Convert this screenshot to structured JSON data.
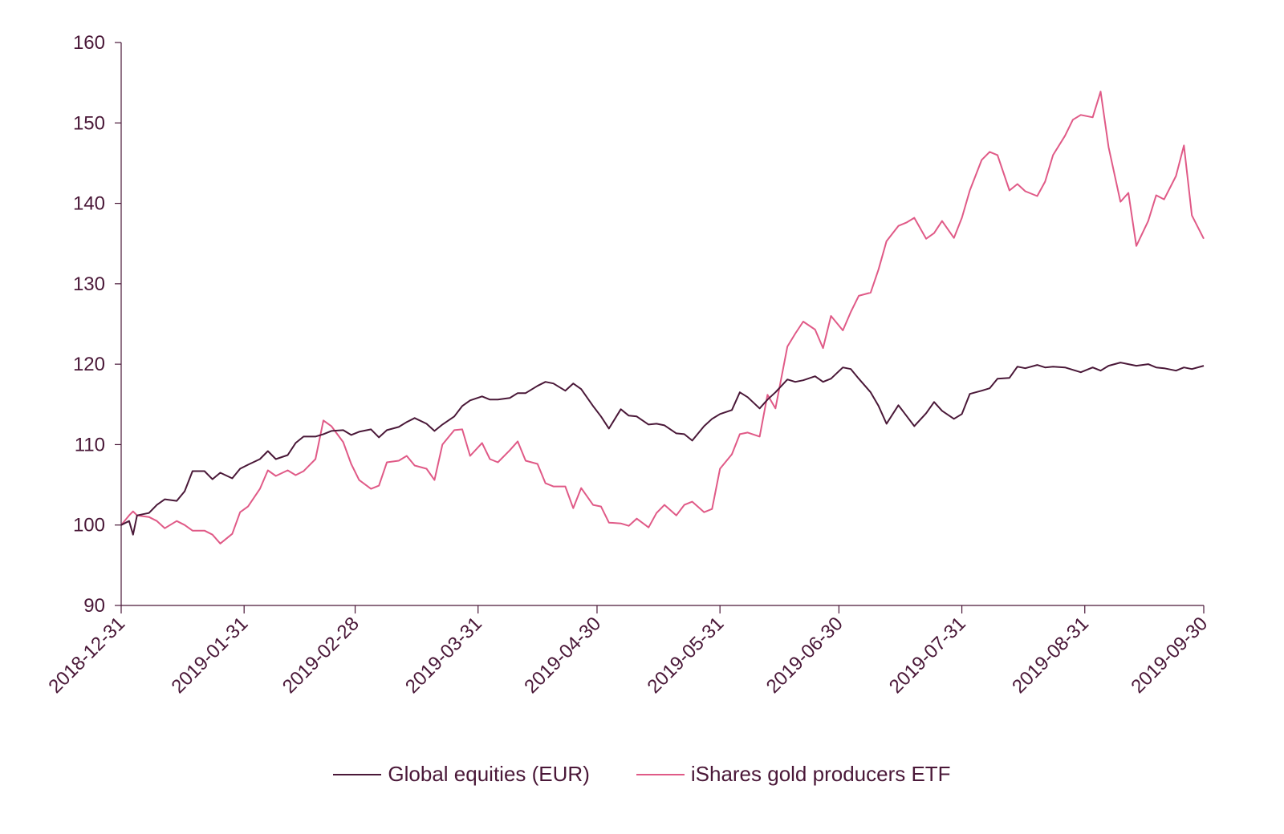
{
  "chart_data": {
    "type": "line",
    "title": "",
    "xlabel": "",
    "ylabel": "",
    "x_ticks": [
      "2018-12-31",
      "2019-01-31",
      "2019-02-28",
      "2019-03-31",
      "2019-04-30",
      "2019-05-31",
      "2019-06-30",
      "2019-07-31",
      "2019-08-31",
      "2019-09-30"
    ],
    "y_ticks": [
      "90",
      "100",
      "110",
      "120",
      "130",
      "140",
      "150",
      "160"
    ],
    "xlim": [
      "2018-12-31",
      "2019-09-30"
    ],
    "ylim": [
      90,
      160
    ],
    "grid": false,
    "legend_position": "bottom",
    "series": [
      {
        "name": "Global equities (EUR)",
        "color": "#4a1838",
        "points": [
          [
            "2018-12-31",
            100.0
          ],
          [
            "2019-01-02",
            100.5
          ],
          [
            "2019-01-03",
            98.8
          ],
          [
            "2019-01-04",
            101.2
          ],
          [
            "2019-01-07",
            101.5
          ],
          [
            "2019-01-09",
            102.5
          ],
          [
            "2019-01-11",
            103.2
          ],
          [
            "2019-01-14",
            103.0
          ],
          [
            "2019-01-16",
            104.2
          ],
          [
            "2019-01-18",
            106.7
          ],
          [
            "2019-01-21",
            106.7
          ],
          [
            "2019-01-23",
            105.7
          ],
          [
            "2019-01-25",
            106.5
          ],
          [
            "2019-01-28",
            105.8
          ],
          [
            "2019-01-30",
            107.0
          ],
          [
            "2019-02-01",
            107.5
          ],
          [
            "2019-02-04",
            108.2
          ],
          [
            "2019-02-06",
            109.2
          ],
          [
            "2019-02-08",
            108.2
          ],
          [
            "2019-02-11",
            108.7
          ],
          [
            "2019-02-13",
            110.2
          ],
          [
            "2019-02-15",
            111.0
          ],
          [
            "2019-02-18",
            111.0
          ],
          [
            "2019-02-20",
            111.3
          ],
          [
            "2019-02-22",
            111.7
          ],
          [
            "2019-02-25",
            111.8
          ],
          [
            "2019-02-27",
            111.2
          ],
          [
            "2019-03-01",
            111.6
          ],
          [
            "2019-03-04",
            111.9
          ],
          [
            "2019-03-06",
            110.9
          ],
          [
            "2019-03-08",
            111.8
          ],
          [
            "2019-03-11",
            112.2
          ],
          [
            "2019-03-13",
            112.8
          ],
          [
            "2019-03-15",
            113.3
          ],
          [
            "2019-03-18",
            112.6
          ],
          [
            "2019-03-20",
            111.7
          ],
          [
            "2019-03-22",
            112.5
          ],
          [
            "2019-03-25",
            113.5
          ],
          [
            "2019-03-27",
            114.8
          ],
          [
            "2019-03-29",
            115.5
          ],
          [
            "2019-04-01",
            116.0
          ],
          [
            "2019-04-03",
            115.6
          ],
          [
            "2019-04-05",
            115.6
          ],
          [
            "2019-04-08",
            115.8
          ],
          [
            "2019-04-10",
            116.4
          ],
          [
            "2019-04-12",
            116.4
          ],
          [
            "2019-04-15",
            117.3
          ],
          [
            "2019-04-17",
            117.8
          ],
          [
            "2019-04-19",
            117.6
          ],
          [
            "2019-04-22",
            116.7
          ],
          [
            "2019-04-24",
            117.6
          ],
          [
            "2019-04-26",
            116.9
          ],
          [
            "2019-04-29",
            114.8
          ],
          [
            "2019-05-01",
            113.5
          ],
          [
            "2019-05-03",
            112.0
          ],
          [
            "2019-05-06",
            114.4
          ],
          [
            "2019-05-08",
            113.6
          ],
          [
            "2019-05-10",
            113.5
          ],
          [
            "2019-05-13",
            112.5
          ],
          [
            "2019-05-15",
            112.6
          ],
          [
            "2019-05-17",
            112.4
          ],
          [
            "2019-05-20",
            111.4
          ],
          [
            "2019-05-22",
            111.3
          ],
          [
            "2019-05-24",
            110.5
          ],
          [
            "2019-05-27",
            112.3
          ],
          [
            "2019-05-29",
            113.2
          ],
          [
            "2019-05-31",
            113.8
          ],
          [
            "2019-06-03",
            114.3
          ],
          [
            "2019-06-05",
            116.5
          ],
          [
            "2019-06-07",
            115.9
          ],
          [
            "2019-06-10",
            114.5
          ],
          [
            "2019-06-12",
            115.6
          ],
          [
            "2019-06-14",
            116.5
          ],
          [
            "2019-06-17",
            118.1
          ],
          [
            "2019-06-19",
            117.8
          ],
          [
            "2019-06-21",
            118.0
          ],
          [
            "2019-06-24",
            118.5
          ],
          [
            "2019-06-26",
            117.8
          ],
          [
            "2019-06-28",
            118.2
          ],
          [
            "2019-07-01",
            119.6
          ],
          [
            "2019-07-03",
            119.4
          ],
          [
            "2019-07-05",
            118.2
          ],
          [
            "2019-07-08",
            116.5
          ],
          [
            "2019-07-10",
            114.8
          ],
          [
            "2019-07-12",
            112.6
          ],
          [
            "2019-07-15",
            114.9
          ],
          [
            "2019-07-17",
            113.6
          ],
          [
            "2019-07-19",
            112.3
          ],
          [
            "2019-07-22",
            113.9
          ],
          [
            "2019-07-24",
            115.3
          ],
          [
            "2019-07-26",
            114.2
          ],
          [
            "2019-07-29",
            113.2
          ],
          [
            "2019-07-31",
            113.8
          ],
          [
            "2019-08-02",
            116.3
          ],
          [
            "2019-08-05",
            116.7
          ],
          [
            "2019-08-07",
            117.0
          ],
          [
            "2019-08-09",
            118.2
          ],
          [
            "2019-08-12",
            118.3
          ],
          [
            "2019-08-14",
            119.7
          ],
          [
            "2019-08-16",
            119.5
          ],
          [
            "2019-08-19",
            119.9
          ],
          [
            "2019-08-21",
            119.6
          ],
          [
            "2019-08-23",
            119.7
          ],
          [
            "2019-08-26",
            119.6
          ],
          [
            "2019-08-28",
            119.3
          ],
          [
            "2019-08-30",
            119.0
          ],
          [
            "2019-09-02",
            119.6
          ],
          [
            "2019-09-04",
            119.2
          ],
          [
            "2019-09-06",
            119.8
          ],
          [
            "2019-09-09",
            120.2
          ],
          [
            "2019-09-11",
            120.0
          ],
          [
            "2019-09-13",
            119.8
          ],
          [
            "2019-09-16",
            120.0
          ],
          [
            "2019-09-18",
            119.6
          ],
          [
            "2019-09-20",
            119.5
          ],
          [
            "2019-09-23",
            119.2
          ],
          [
            "2019-09-25",
            119.6
          ],
          [
            "2019-09-27",
            119.4
          ],
          [
            "2019-09-30",
            119.8
          ]
        ]
      },
      {
        "name": "iShares gold producers ETF",
        "color": "#e05a87",
        "points": [
          [
            "2018-12-31",
            100.0
          ],
          [
            "2019-01-02",
            101.2
          ],
          [
            "2019-01-03",
            101.7
          ],
          [
            "2019-01-04",
            101.2
          ],
          [
            "2019-01-07",
            101.0
          ],
          [
            "2019-01-09",
            100.5
          ],
          [
            "2019-01-11",
            99.6
          ],
          [
            "2019-01-14",
            100.5
          ],
          [
            "2019-01-16",
            100.0
          ],
          [
            "2019-01-18",
            99.3
          ],
          [
            "2019-01-21",
            99.3
          ],
          [
            "2019-01-23",
            98.8
          ],
          [
            "2019-01-25",
            97.7
          ],
          [
            "2019-01-28",
            98.9
          ],
          [
            "2019-01-30",
            101.6
          ],
          [
            "2019-02-01",
            102.3
          ],
          [
            "2019-02-04",
            104.5
          ],
          [
            "2019-02-06",
            106.8
          ],
          [
            "2019-02-08",
            106.1
          ],
          [
            "2019-02-11",
            106.8
          ],
          [
            "2019-02-13",
            106.2
          ],
          [
            "2019-02-15",
            106.7
          ],
          [
            "2019-02-18",
            108.2
          ],
          [
            "2019-02-20",
            113.0
          ],
          [
            "2019-02-22",
            112.3
          ],
          [
            "2019-02-25",
            110.3
          ],
          [
            "2019-02-27",
            107.6
          ],
          [
            "2019-03-01",
            105.6
          ],
          [
            "2019-03-04",
            104.5
          ],
          [
            "2019-03-06",
            104.9
          ],
          [
            "2019-03-08",
            107.8
          ],
          [
            "2019-03-11",
            108.0
          ],
          [
            "2019-03-13",
            108.6
          ],
          [
            "2019-03-15",
            107.4
          ],
          [
            "2019-03-18",
            107.0
          ],
          [
            "2019-03-20",
            105.6
          ],
          [
            "2019-03-22",
            110.0
          ],
          [
            "2019-03-25",
            111.8
          ],
          [
            "2019-03-27",
            111.9
          ],
          [
            "2019-03-29",
            108.6
          ],
          [
            "2019-04-01",
            110.2
          ],
          [
            "2019-04-03",
            108.2
          ],
          [
            "2019-04-05",
            107.8
          ],
          [
            "2019-04-08",
            109.3
          ],
          [
            "2019-04-10",
            110.4
          ],
          [
            "2019-04-12",
            108.0
          ],
          [
            "2019-04-15",
            107.6
          ],
          [
            "2019-04-17",
            105.2
          ],
          [
            "2019-04-19",
            104.8
          ],
          [
            "2019-04-22",
            104.8
          ],
          [
            "2019-04-24",
            102.1
          ],
          [
            "2019-04-26",
            104.6
          ],
          [
            "2019-04-29",
            102.5
          ],
          [
            "2019-05-01",
            102.3
          ],
          [
            "2019-05-03",
            100.3
          ],
          [
            "2019-05-06",
            100.2
          ],
          [
            "2019-05-08",
            99.9
          ],
          [
            "2019-05-10",
            100.8
          ],
          [
            "2019-05-13",
            99.7
          ],
          [
            "2019-05-15",
            101.5
          ],
          [
            "2019-05-17",
            102.5
          ],
          [
            "2019-05-20",
            101.2
          ],
          [
            "2019-05-22",
            102.5
          ],
          [
            "2019-05-24",
            102.9
          ],
          [
            "2019-05-27",
            101.6
          ],
          [
            "2019-05-29",
            102.0
          ],
          [
            "2019-05-31",
            107.0
          ],
          [
            "2019-06-03",
            108.8
          ],
          [
            "2019-06-05",
            111.3
          ],
          [
            "2019-06-07",
            111.5
          ],
          [
            "2019-06-10",
            111.0
          ],
          [
            "2019-06-12",
            116.2
          ],
          [
            "2019-06-14",
            114.5
          ],
          [
            "2019-06-17",
            122.2
          ],
          [
            "2019-06-19",
            123.8
          ],
          [
            "2019-06-21",
            125.3
          ],
          [
            "2019-06-24",
            124.3
          ],
          [
            "2019-06-26",
            122.0
          ],
          [
            "2019-06-28",
            126.0
          ],
          [
            "2019-07-01",
            124.2
          ],
          [
            "2019-07-03",
            126.5
          ],
          [
            "2019-07-05",
            128.5
          ],
          [
            "2019-07-08",
            128.9
          ],
          [
            "2019-07-10",
            131.8
          ],
          [
            "2019-07-12",
            135.3
          ],
          [
            "2019-07-15",
            137.2
          ],
          [
            "2019-07-17",
            137.6
          ],
          [
            "2019-07-19",
            138.2
          ],
          [
            "2019-07-22",
            135.6
          ],
          [
            "2019-07-24",
            136.3
          ],
          [
            "2019-07-26",
            137.8
          ],
          [
            "2019-07-29",
            135.7
          ],
          [
            "2019-07-31",
            138.2
          ],
          [
            "2019-08-02",
            141.6
          ],
          [
            "2019-08-05",
            145.4
          ],
          [
            "2019-08-07",
            146.4
          ],
          [
            "2019-08-09",
            146.0
          ],
          [
            "2019-08-12",
            141.6
          ],
          [
            "2019-08-14",
            142.4
          ],
          [
            "2019-08-16",
            141.5
          ],
          [
            "2019-08-19",
            140.9
          ],
          [
            "2019-08-21",
            142.7
          ],
          [
            "2019-08-23",
            146.0
          ],
          [
            "2019-08-26",
            148.4
          ],
          [
            "2019-08-28",
            150.4
          ],
          [
            "2019-08-30",
            151.0
          ],
          [
            "2019-09-02",
            150.7
          ],
          [
            "2019-09-04",
            153.9
          ],
          [
            "2019-09-06",
            147.0
          ],
          [
            "2019-09-09",
            140.2
          ],
          [
            "2019-09-11",
            141.3
          ],
          [
            "2019-09-13",
            134.7
          ],
          [
            "2019-09-16",
            137.8
          ],
          [
            "2019-09-18",
            141.0
          ],
          [
            "2019-09-20",
            140.5
          ],
          [
            "2019-09-23",
            143.4
          ],
          [
            "2019-09-25",
            147.2
          ],
          [
            "2019-09-27",
            138.5
          ],
          [
            "2019-09-30",
            135.6
          ]
        ]
      }
    ]
  }
}
